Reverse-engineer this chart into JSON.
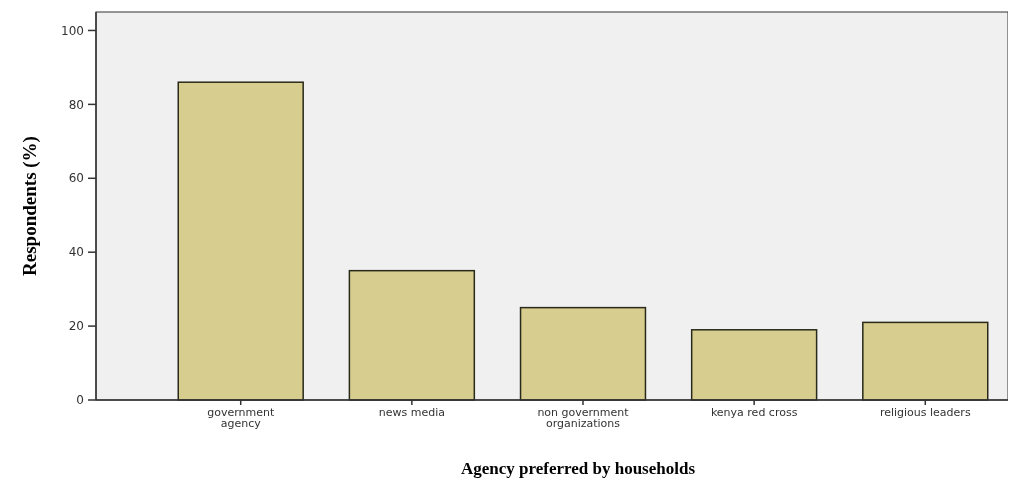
{
  "chart_data": {
    "type": "bar",
    "xlabel": "Agency preferred by households",
    "ylabel": "Respondents (%)",
    "categories": [
      "government\nagency",
      "news media",
      "non government\norganizations",
      "kenya red cross",
      "religious leaders"
    ],
    "values": [
      86,
      35,
      25,
      19,
      21
    ],
    "color": "#d6cd8e",
    "ylim": [
      0,
      105
    ],
    "yticks": [
      0,
      20,
      40,
      60,
      80,
      100
    ],
    "grid": false
  }
}
